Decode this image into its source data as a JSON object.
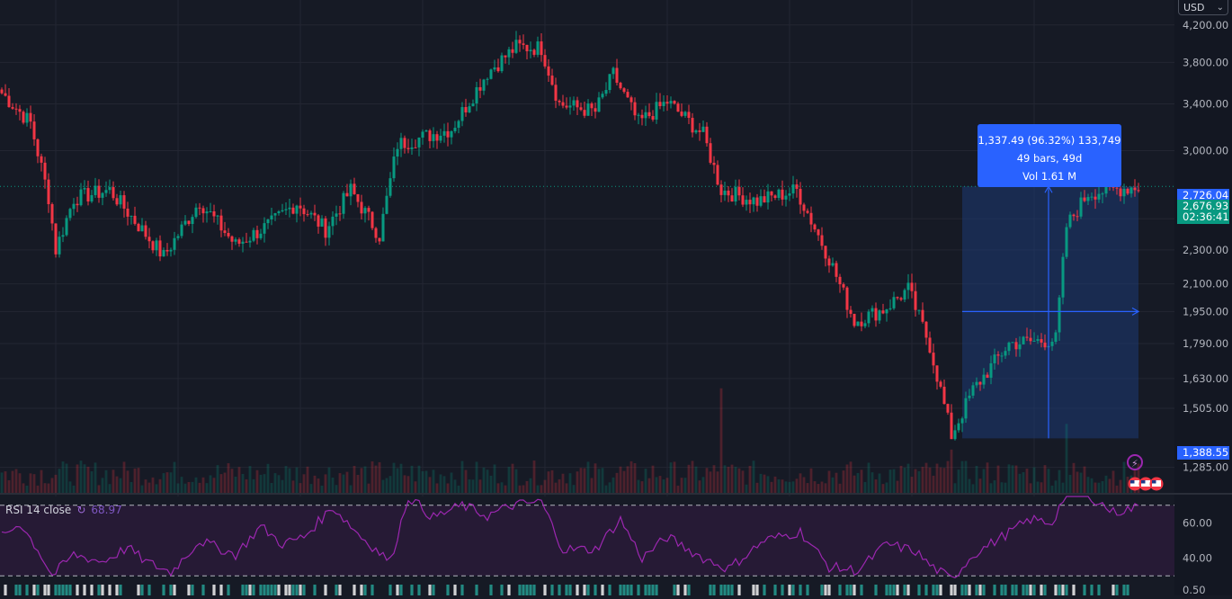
{
  "currency": {
    "label": "USD",
    "chevron_icon": "chevron-down-icon"
  },
  "chart_data": {
    "type": "candlestick",
    "price_axis": {
      "ticks": [
        "4,200.00",
        "3,800.00",
        "3,400.00",
        "3,000.00",
        "2,500.00",
        "2,300.00",
        "2,100.00",
        "1,950.00",
        "1,790.00",
        "1,630.00",
        "1,505.00",
        "1,285.00"
      ],
      "tick_values": [
        4200,
        3800,
        3400,
        3000,
        2500,
        2300,
        2100,
        1950,
        1790,
        1630,
        1505,
        1285
      ],
      "scale": "log",
      "range": [
        1200,
        4300
      ]
    },
    "rsi_axis": {
      "ticks": [
        "60.00",
        "40.00",
        "0.50"
      ],
      "tick_values": [
        60,
        40,
        0.5
      ],
      "bands": [
        70,
        30
      ],
      "range": [
        25,
        75
      ]
    },
    "candles_key_points": [
      {
        "bar": 0,
        "price": 3500
      },
      {
        "bar": 8,
        "price": 3230
      },
      {
        "bar": 13,
        "price": 2650
      },
      {
        "bar": 15,
        "price": 2300
      },
      {
        "bar": 20,
        "price": 2640
      },
      {
        "bar": 30,
        "price": 2700
      },
      {
        "bar": 45,
        "price": 2260
      },
      {
        "bar": 55,
        "price": 2620
      },
      {
        "bar": 65,
        "price": 2330
      },
      {
        "bar": 75,
        "price": 2470
      },
      {
        "bar": 82,
        "price": 2610
      },
      {
        "bar": 90,
        "price": 2430
      },
      {
        "bar": 97,
        "price": 2700
      },
      {
        "bar": 105,
        "price": 2390
      },
      {
        "bar": 110,
        "price": 3050
      },
      {
        "bar": 125,
        "price": 3180
      },
      {
        "bar": 135,
        "price": 3700
      },
      {
        "bar": 143,
        "price": 3960
      },
      {
        "bar": 150,
        "price": 3950
      },
      {
        "bar": 155,
        "price": 3400
      },
      {
        "bar": 165,
        "price": 3330
      },
      {
        "bar": 170,
        "price": 3680
      },
      {
        "bar": 177,
        "price": 3230
      },
      {
        "bar": 185,
        "price": 3420
      },
      {
        "bar": 195,
        "price": 3130
      },
      {
        "bar": 200,
        "price": 2700
      },
      {
        "bar": 210,
        "price": 2620
      },
      {
        "bar": 221,
        "price": 2700
      },
      {
        "bar": 230,
        "price": 2250
      },
      {
        "bar": 237,
        "price": 1900
      },
      {
        "bar": 245,
        "price": 1960
      },
      {
        "bar": 252,
        "price": 2070
      },
      {
        "bar": 258,
        "price": 1780
      },
      {
        "bar": 264,
        "price": 1400
      },
      {
        "bar": 270,
        "price": 1580
      },
      {
        "bar": 280,
        "price": 1790
      },
      {
        "bar": 293,
        "price": 1810
      },
      {
        "bar": 296,
        "price": 2450
      },
      {
        "bar": 302,
        "price": 2680
      },
      {
        "bar": 316,
        "price": 2726
      }
    ],
    "last_price": "2,726.04",
    "cursor_price": "2,676.93",
    "countdown": "02:36:41",
    "range_low_label": "1,388.55",
    "measure": {
      "line1": "1,337.49 (96.32%) 133,749",
      "line2": "49 bars, 49d",
      "line3": "Vol 1.61 M",
      "from_price": 1388.55,
      "to_price": 2726.04
    },
    "rsi": {
      "label": "RSI 14 close",
      "value": "68.97",
      "loop_icon": "refresh-icon",
      "points": [
        {
          "bar": 0,
          "v": 52
        },
        {
          "bar": 5,
          "v": 60
        },
        {
          "bar": 10,
          "v": 45
        },
        {
          "bar": 14,
          "v": 30
        },
        {
          "bar": 20,
          "v": 42
        },
        {
          "bar": 28,
          "v": 38
        },
        {
          "bar": 35,
          "v": 46
        },
        {
          "bar": 40,
          "v": 38
        },
        {
          "bar": 47,
          "v": 32
        },
        {
          "bar": 55,
          "v": 50
        },
        {
          "bar": 65,
          "v": 42
        },
        {
          "bar": 72,
          "v": 58
        },
        {
          "bar": 78,
          "v": 48
        },
        {
          "bar": 84,
          "v": 52
        },
        {
          "bar": 92,
          "v": 69
        },
        {
          "bar": 100,
          "v": 52
        },
        {
          "bar": 108,
          "v": 38
        },
        {
          "bar": 113,
          "v": 75
        },
        {
          "bar": 120,
          "v": 63
        },
        {
          "bar": 128,
          "v": 70
        },
        {
          "bar": 135,
          "v": 64
        },
        {
          "bar": 142,
          "v": 70
        },
        {
          "bar": 150,
          "v": 72
        },
        {
          "bar": 156,
          "v": 45
        },
        {
          "bar": 165,
          "v": 45
        },
        {
          "bar": 172,
          "v": 62
        },
        {
          "bar": 178,
          "v": 40
        },
        {
          "bar": 185,
          "v": 52
        },
        {
          "bar": 195,
          "v": 40
        },
        {
          "bar": 202,
          "v": 34
        },
        {
          "bar": 212,
          "v": 50
        },
        {
          "bar": 222,
          "v": 55
        },
        {
          "bar": 230,
          "v": 35
        },
        {
          "bar": 238,
          "v": 33
        },
        {
          "bar": 246,
          "v": 48
        },
        {
          "bar": 254,
          "v": 44
        },
        {
          "bar": 258,
          "v": 36
        },
        {
          "bar": 264,
          "v": 28
        },
        {
          "bar": 270,
          "v": 42
        },
        {
          "bar": 278,
          "v": 52
        },
        {
          "bar": 286,
          "v": 62
        },
        {
          "bar": 292,
          "v": 60
        },
        {
          "bar": 296,
          "v": 78
        },
        {
          "bar": 302,
          "v": 76
        },
        {
          "bar": 309,
          "v": 66
        },
        {
          "bar": 316,
          "v": 68.97
        }
      ]
    },
    "colors": {
      "up": "#089981",
      "down": "#f23645",
      "rsi_line": "#9c27b0",
      "rsi_band_fill": "#2a1a3a",
      "measure_fill": "#1e3a75",
      "accent": "#2962ff",
      "grid": "#232632"
    },
    "event_icons": [
      "lightning-icon",
      "us-flag-icon",
      "us-flag-icon",
      "us-flag-icon"
    ]
  }
}
